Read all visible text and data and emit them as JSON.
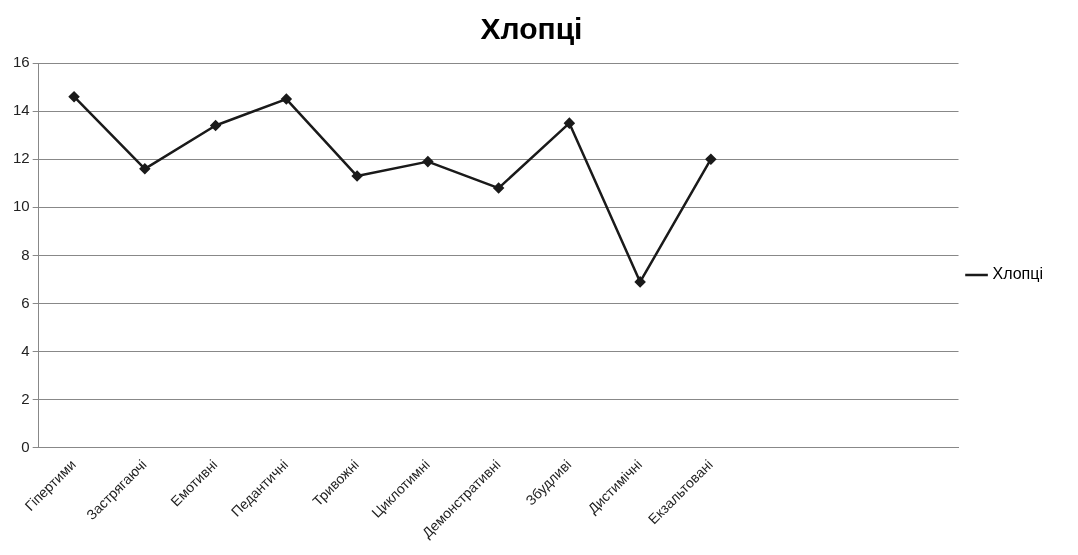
{
  "chart_data": {
    "type": "line",
    "title": "Хлопці",
    "categories": [
      "Гіпертими",
      "Застрягаючі",
      "Емотивні",
      "Педантичні",
      "Тривожні",
      "Циклотимні",
      "Демонстративні",
      "Збудливі",
      "Дистимічні",
      "Екзальтовані",
      null,
      null,
      null
    ],
    "series": [
      {
        "name": "Хлопці",
        "color": "#1a1a1a",
        "values": [
          14.6,
          11.6,
          13.4,
          14.5,
          11.3,
          11.9,
          10.8,
          13.5,
          6.9,
          12.0,
          null,
          null,
          null
        ]
      }
    ],
    "ylim": [
      0,
      16
    ],
    "yticks": [
      0,
      2,
      4,
      6,
      8,
      10,
      12,
      14,
      16
    ],
    "grid": "y",
    "legend": "right",
    "marker": "diamond",
    "line_style": "solid"
  }
}
